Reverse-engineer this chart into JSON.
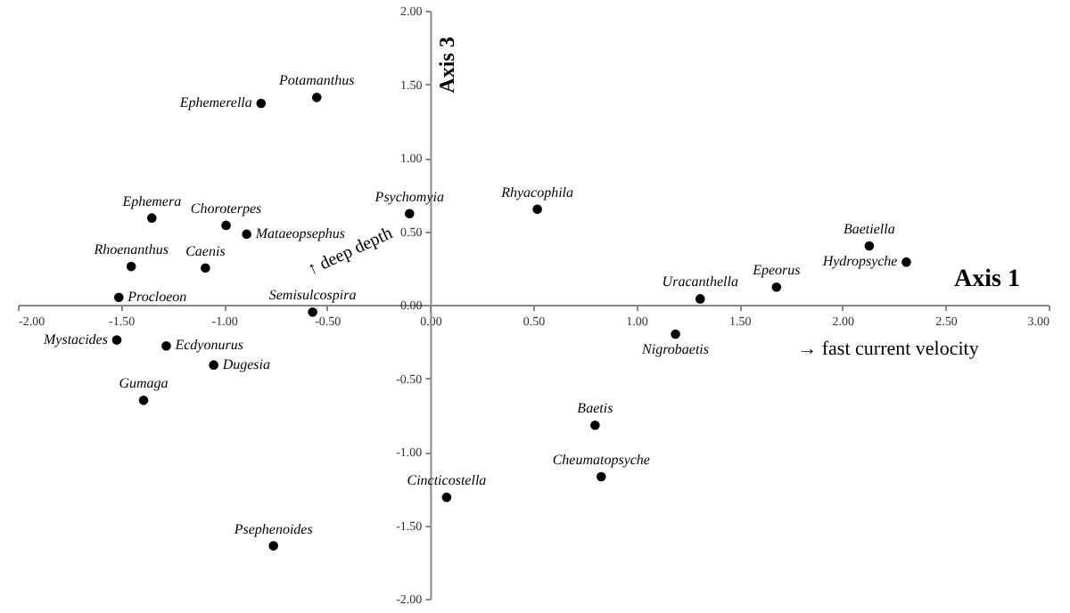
{
  "chart_data": {
    "type": "scatter",
    "xlabel": "Axis 1",
    "ylabel": "Axis 3",
    "xlim": [
      -2,
      3
    ],
    "ylim": [
      -2,
      2
    ],
    "xticks": [
      {
        "value": -2,
        "label": "-2.00"
      },
      {
        "value": -1.5,
        "label": "-1.50"
      },
      {
        "value": -1,
        "label": "-1.00"
      },
      {
        "value": -0.5,
        "label": "-0.50"
      },
      {
        "value": 0,
        "label": "0.00"
      },
      {
        "value": 0.5,
        "label": "0.50"
      },
      {
        "value": 1,
        "label": "1.00"
      },
      {
        "value": 1.5,
        "label": "1.50"
      },
      {
        "value": 2,
        "label": "2.00"
      },
      {
        "value": 2.5,
        "label": "2.50"
      },
      {
        "value": 3,
        "label": "3.00"
      }
    ],
    "yticks": [
      {
        "value": -2,
        "label": "-2.00"
      },
      {
        "value": -1.5,
        "label": "-1.50"
      },
      {
        "value": -1,
        "label": "-1.00"
      },
      {
        "value": -0.5,
        "label": "-0.50"
      },
      {
        "value": 0,
        "label": "0.00"
      },
      {
        "value": 0.5,
        "label": "0.50"
      },
      {
        "value": 1,
        "label": "1.00"
      },
      {
        "value": 1.5,
        "label": "1.50"
      },
      {
        "value": 2,
        "label": "2.00"
      }
    ],
    "grid": false,
    "marker": "circle",
    "annotations": [
      "→  fast current velocity",
      "↑ deep depth"
    ],
    "series": [
      {
        "name": "Potamanthus",
        "color": "#000000",
        "x": [
          -0.55
        ],
        "values": [
          1.41
        ]
      },
      {
        "name": "Ephemerella",
        "color": "#000000",
        "x": [
          -0.82
        ],
        "values": [
          1.37
        ]
      },
      {
        "name": "Ephemera",
        "color": "#000000",
        "x": [
          -1.35
        ],
        "values": [
          0.59
        ]
      },
      {
        "name": "Choroterpes",
        "color": "#000000",
        "x": [
          -0.99
        ],
        "values": [
          0.54
        ]
      },
      {
        "name": "Mataeopsephus",
        "color": "#000000",
        "x": [
          -0.89
        ],
        "values": [
          0.48
        ]
      },
      {
        "name": "Caenis",
        "color": "#000000",
        "x": [
          -1.09
        ],
        "values": [
          0.25
        ]
      },
      {
        "name": "Psychomyia",
        "color": "#000000",
        "x": [
          -0.1
        ],
        "values": [
          0.62
        ]
      },
      {
        "name": "Rhoenanthus",
        "color": "#000000",
        "x": [
          -1.45
        ],
        "values": [
          0.26
        ]
      },
      {
        "name": "Procloeon",
        "color": "#000000",
        "x": [
          -1.51
        ],
        "values": [
          0.05
        ]
      },
      {
        "name": "Rhyacophila",
        "color": "#000000",
        "x": [
          0.52
        ],
        "values": [
          0.65
        ]
      },
      {
        "name": "Baetiella",
        "color": "#000000",
        "x": [
          2.13
        ],
        "values": [
          0.4
        ]
      },
      {
        "name": "Hydropsyche",
        "color": "#000000",
        "x": [
          2.31
        ],
        "values": [
          0.29
        ]
      },
      {
        "name": "Epeorus",
        "color": "#000000",
        "x": [
          1.68
        ],
        "values": [
          0.12
        ]
      },
      {
        "name": "Uracanthella",
        "color": "#000000",
        "x": [
          1.31
        ],
        "values": [
          0.04
        ]
      },
      {
        "name": "Semisulcospira",
        "color": "#000000",
        "x": [
          -0.57
        ],
        "values": [
          -0.05
        ]
      },
      {
        "name": "Mystacides",
        "color": "#000000",
        "x": [
          -1.52
        ],
        "values": [
          -0.24
        ]
      },
      {
        "name": "Ecdyonurus",
        "color": "#000000",
        "x": [
          -1.28
        ],
        "values": [
          -0.28
        ]
      },
      {
        "name": "Dugesia",
        "color": "#000000",
        "x": [
          -1.05
        ],
        "values": [
          -0.41
        ]
      },
      {
        "name": "Gumaga",
        "color": "#000000",
        "x": [
          -1.39
        ],
        "values": [
          -0.65
        ]
      },
      {
        "name": "Psephenoides",
        "color": "#000000",
        "x": [
          -0.76
        ],
        "values": [
          -1.64
        ]
      },
      {
        "name": "Cincticostella",
        "color": "#000000",
        "x": [
          0.08
        ],
        "values": [
          -1.31
        ]
      },
      {
        "name": "Nigrobaetis",
        "color": "#000000",
        "x": [
          1.19
        ],
        "values": [
          -0.2
        ]
      },
      {
        "name": "Baetis",
        "color": "#000000",
        "x": [
          0.8
        ],
        "values": [
          -0.82
        ]
      },
      {
        "name": "Cheumatopsyche",
        "color": "#000000",
        "x": [
          0.83
        ],
        "values": [
          -1.17
        ]
      }
    ]
  }
}
